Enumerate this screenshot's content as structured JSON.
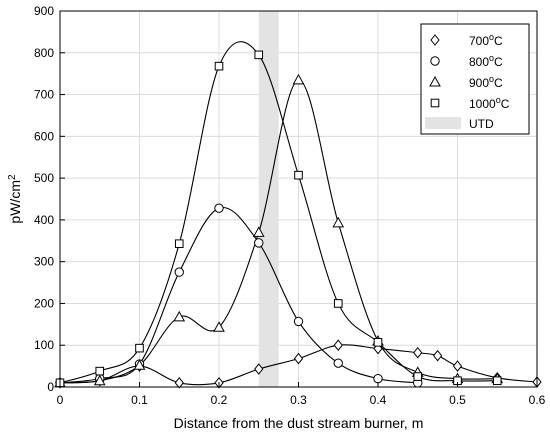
{
  "chart_data": {
    "type": "line",
    "title": "",
    "xlabel": "Distance from the dust stream burner, m",
    "ylabel_base": "pW/cm",
    "ylabel_sup": "2",
    "xlim": [
      0,
      0.6
    ],
    "ylim": [
      0,
      900
    ],
    "xticks": [
      0,
      0.1,
      0.2,
      0.3,
      0.4,
      0.5,
      0.6
    ],
    "xtick_labels": [
      "0",
      "0.1",
      "0.2",
      "0.3",
      "0.4",
      "0.5",
      "0.6"
    ],
    "yticks": [
      0,
      100,
      200,
      300,
      400,
      500,
      600,
      700,
      800,
      900
    ],
    "ytick_labels": [
      "0",
      "100",
      "200",
      "300",
      "400",
      "500",
      "600",
      "700",
      "800",
      "900"
    ],
    "grid": true,
    "legend_position": "top-right",
    "band": {
      "name": "UTD",
      "x": [
        0.25,
        0.275
      ],
      "color": "#e3e3e3"
    },
    "series": [
      {
        "name_base": "700",
        "name_sup": "o",
        "name_suffix": "C",
        "marker": "diamond",
        "x": [
          0,
          0.05,
          0.1,
          0.15,
          0.2,
          0.25,
          0.3,
          0.35,
          0.4,
          0.45,
          0.475,
          0.5,
          0.55,
          0.6
        ],
        "y": [
          10,
          15,
          50,
          10,
          10,
          43,
          68,
          100,
          92,
          82,
          75,
          50,
          22,
          12
        ]
      },
      {
        "name_base": "800",
        "name_sup": "o",
        "name_suffix": "C",
        "marker": "circle",
        "x": [
          0,
          0.05,
          0.1,
          0.15,
          0.2,
          0.25,
          0.3,
          0.35,
          0.4,
          0.45
        ],
        "y": [
          10,
          20,
          55,
          275,
          428,
          345,
          157,
          57,
          20,
          10
        ]
      },
      {
        "name_base": "900",
        "name_sup": "o",
        "name_suffix": "C",
        "marker": "triangle",
        "x": [
          0,
          0.05,
          0.1,
          0.15,
          0.2,
          0.25,
          0.3,
          0.35,
          0.4,
          0.45,
          0.5,
          0.55
        ],
        "y": [
          10,
          15,
          52,
          168,
          143,
          370,
          735,
          393,
          110,
          35,
          20,
          20
        ]
      },
      {
        "name_base": "1000",
        "name_sup": "o",
        "name_suffix": "C",
        "marker": "square",
        "x": [
          0,
          0.05,
          0.1,
          0.15,
          0.2,
          0.25,
          0.3,
          0.35,
          0.4,
          0.45,
          0.5,
          0.55
        ],
        "y": [
          10,
          38,
          93,
          343,
          768,
          795,
          507,
          200,
          107,
          25,
          15,
          15
        ]
      }
    ]
  }
}
